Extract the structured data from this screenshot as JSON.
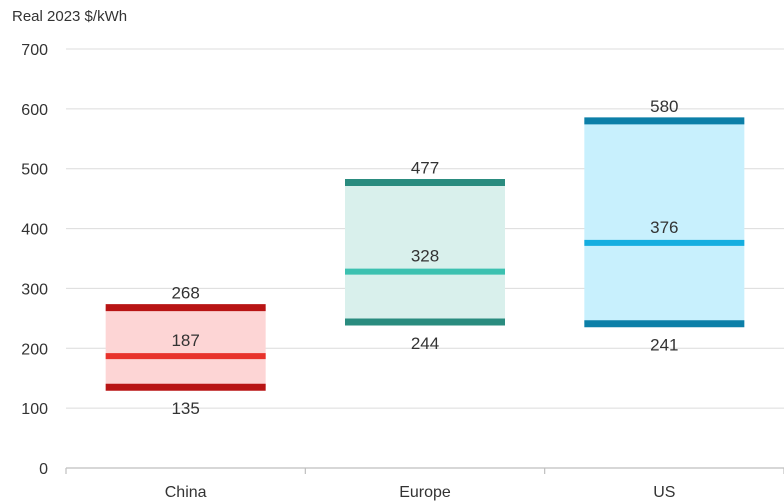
{
  "chart_data": {
    "type": "range-bar",
    "ylabel": "Real 2023 $/kWh",
    "ylim": [
      0,
      700
    ],
    "yticks": [
      0,
      100,
      200,
      300,
      400,
      500,
      600,
      700
    ],
    "grid": true,
    "categories": [
      "China",
      "Europe",
      "US"
    ],
    "series": [
      {
        "category": "China",
        "low": 135,
        "mid": 187,
        "high": 268,
        "fill": "#fdd5d5",
        "edge": "#b81414",
        "mid_color": "#e8322b"
      },
      {
        "category": "Europe",
        "low": 244,
        "mid": 328,
        "high": 477,
        "fill": "#d9f0ec",
        "edge": "#2a8c7f",
        "mid_color": "#3cc1b0"
      },
      {
        "category": "US",
        "low": 241,
        "mid": 376,
        "high": 580,
        "fill": "#c8f0fd",
        "edge": "#0c7fa8",
        "mid_color": "#15aee0"
      }
    ],
    "labels": {
      "low": [
        "135",
        "244",
        "241"
      ],
      "mid": [
        "187",
        "328",
        "376"
      ],
      "high": [
        "268",
        "477",
        "580"
      ]
    },
    "tick_labels": [
      "0",
      "100",
      "200",
      "300",
      "400",
      "500",
      "600",
      "700"
    ]
  }
}
